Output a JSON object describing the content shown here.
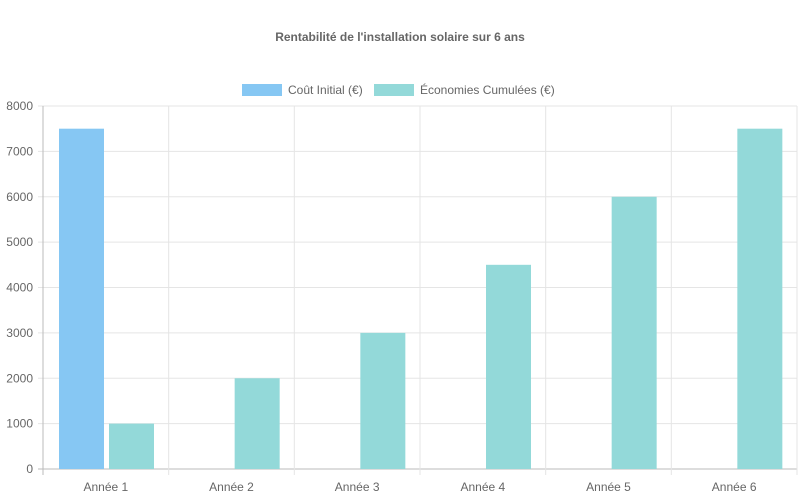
{
  "chart_data": {
    "type": "bar",
    "title": "Rentabilité de l'installation solaire sur 6 ans",
    "categories": [
      "Année 1",
      "Année 2",
      "Année 3",
      "Année 4",
      "Année 5",
      "Année 6"
    ],
    "series": [
      {
        "name": "Coût Initial (€)",
        "values": [
          7500,
          0,
          0,
          0,
          0,
          0
        ],
        "color": "#86c7f3"
      },
      {
        "name": "Économies Cumulées (€)",
        "values": [
          1000,
          2000,
          3000,
          4500,
          6000,
          7500
        ],
        "color": "#93d9d9"
      }
    ],
    "xlabel": "",
    "ylabel": "",
    "ylim": [
      0,
      8000
    ],
    "yticks": [
      "0",
      "1000",
      "2000",
      "3000",
      "4000",
      "5000",
      "6000",
      "7000",
      "8000"
    ],
    "grid": true,
    "legend": "top"
  }
}
